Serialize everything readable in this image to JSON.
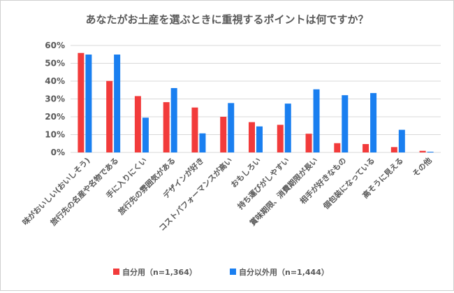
{
  "chart_data": {
    "type": "bar",
    "title": "あなたがお土産を選ぶときに重視するポイントは何ですか？",
    "xlabel": "",
    "ylabel": "",
    "ylim": [
      0,
      60
    ],
    "yticks": [
      "0%",
      "10%",
      "20%",
      "30%",
      "40%",
      "50%",
      "60%"
    ],
    "grid": true,
    "legend_position": "bottom",
    "categories": [
      "味がおいしい(おいしそう)",
      "旅行先の名産や名物である",
      "手に入りにくい",
      "旅行先の雰囲気がある",
      "デザインが好き",
      "コストパフォーマンスが高い",
      "おもしろい",
      "持ち運びがしやすい",
      "賞味期限、消費期限が長い",
      "相手が好きなもの",
      "個包装になっている",
      "高そうに見える",
      "その他"
    ],
    "series": [
      {
        "name": "自分用（n=1,364）",
        "color": "#F23B3B",
        "values": [
          55.8,
          40.1,
          31.6,
          28.2,
          25.2,
          20.0,
          17.0,
          15.5,
          10.5,
          5.2,
          4.7,
          3.0,
          0.9
        ]
      },
      {
        "name": "自分以外用（n=1,444）",
        "color": "#1A7FF0",
        "values": [
          54.9,
          54.9,
          19.5,
          36.1,
          10.7,
          27.7,
          14.6,
          27.4,
          35.4,
          32.1,
          33.3,
          12.7,
          0.4
        ]
      }
    ]
  }
}
